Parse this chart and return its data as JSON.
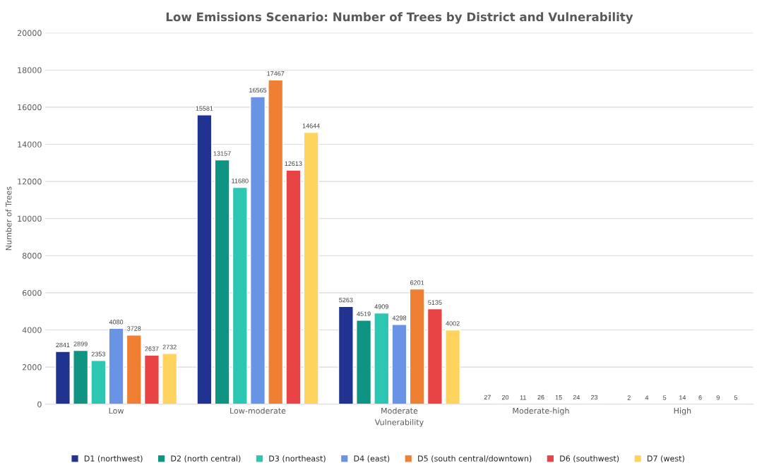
{
  "chart_data": {
    "type": "bar",
    "title": "Low Emissions Scenario: Number of Trees by District and Vulnerability",
    "xlabel": "Vulnerability",
    "ylabel": "Number of Trees",
    "categories": [
      "Low",
      "Low-moderate",
      "Moderate",
      "Moderate-high",
      "High"
    ],
    "series": [
      {
        "name": "D1 (northwest)",
        "color": "#213391",
        "values": [
          2841,
          15581,
          5263,
          27,
          2
        ]
      },
      {
        "name": "D2 (north central)",
        "color": "#0f9382",
        "values": [
          2899,
          13157,
          4519,
          20,
          4
        ]
      },
      {
        "name": "D3 (northeast)",
        "color": "#2cc6b3",
        "values": [
          2353,
          11680,
          4909,
          11,
          5
        ]
      },
      {
        "name": "D4 (east)",
        "color": "#6994e6",
        "values": [
          4080,
          16565,
          4298,
          26,
          14
        ]
      },
      {
        "name": "D5 (south central/downtown)",
        "color": "#ee7f33",
        "values": [
          3728,
          17467,
          6201,
          15,
          6
        ]
      },
      {
        "name": "D6 (southwest)",
        "color": "#e84446",
        "values": [
          2637,
          12613,
          5135,
          24,
          9
        ]
      },
      {
        "name": "D7 (west)",
        "color": "#ffd45e",
        "values": [
          2732,
          14644,
          4002,
          23,
          5
        ]
      }
    ],
    "ylim": [
      0,
      20000
    ],
    "yticks": [
      0,
      2000,
      4000,
      6000,
      8000,
      10000,
      12000,
      14000,
      16000,
      18000,
      20000
    ],
    "grid": "y",
    "legend": "bottom",
    "data_labels": true
  }
}
